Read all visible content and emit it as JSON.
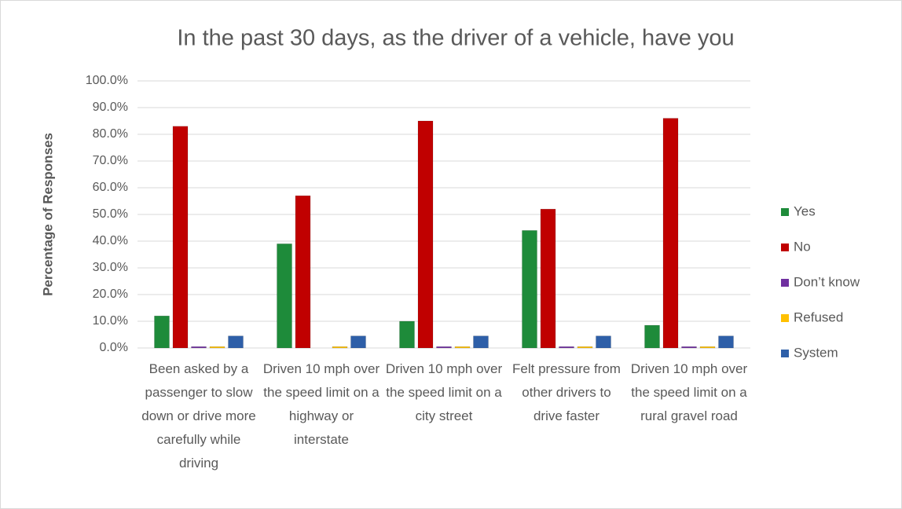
{
  "chart_data": {
    "type": "bar",
    "title": "In the past 30 days, as the driver of a vehicle, have you",
    "y_label": "Percentage of Responses",
    "categories": [
      "Been asked by a passenger to slow down or drive more carefully while driving",
      "Driven 10 mph over the speed limit on a highway or interstate",
      "Driven 10 mph over the speed limit on a city street",
      "Felt pressure from other drivers to drive faster",
      "Driven 10 mph over the speed limit on a rural gravel road"
    ],
    "series": [
      {
        "name": "Yes",
        "color": "#1e8b3a",
        "values": [
          12,
          39,
          10,
          44,
          8.5
        ]
      },
      {
        "name": "No",
        "color": "#c00000",
        "values": [
          83,
          57,
          85,
          52,
          86
        ]
      },
      {
        "name": "Don’t know",
        "color": "#7030a0",
        "values": [
          0.5,
          0,
          0.5,
          0.5,
          0.5
        ]
      },
      {
        "name": "Refused",
        "color": "#ffc000",
        "values": [
          0.5,
          0.5,
          0.5,
          0.5,
          0.5
        ]
      },
      {
        "name": "System",
        "color": "#2e5fa8",
        "values": [
          4.5,
          4.5,
          4.5,
          4.5,
          4.5
        ]
      }
    ],
    "ylim": [
      0,
      100
    ],
    "yticks": [
      {
        "value": 0,
        "label": "0.0%"
      },
      {
        "value": 10,
        "label": "10.0%"
      },
      {
        "value": 20,
        "label": "20.0%"
      },
      {
        "value": 30,
        "label": "30.0%"
      },
      {
        "value": 40,
        "label": "40.0%"
      },
      {
        "value": 50,
        "label": "50.0%"
      },
      {
        "value": 60,
        "label": "60.0%"
      },
      {
        "value": 70,
        "label": "70.0%"
      },
      {
        "value": 80,
        "label": "80.0%"
      },
      {
        "value": 90,
        "label": "90.0%"
      },
      {
        "value": 100,
        "label": "100.0%"
      }
    ],
    "grid": true,
    "legend": "right"
  }
}
